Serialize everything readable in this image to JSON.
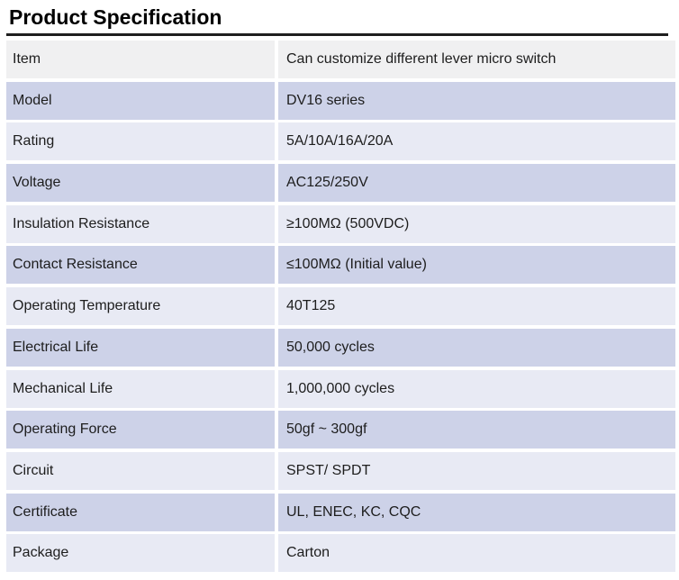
{
  "page_title": "Product Specification",
  "table": {
    "rows": [
      {
        "label": "Item",
        "value": "Can customize different lever micro switch"
      },
      {
        "label": "Model",
        "value": "DV16 series"
      },
      {
        "label": "Rating",
        "value": "5A/10A/16A/20A"
      },
      {
        "label": "Voltage",
        "value": "AC125/250V"
      },
      {
        "label": "Insulation Resistance",
        "value": "≥100MΩ (500VDC)"
      },
      {
        "label": "Contact Resistance",
        "value": "≤100MΩ (Initial value)"
      },
      {
        "label": "Operating Temperature",
        "value": "40T125"
      },
      {
        "label": "Electrical Life",
        "value": "50,000 cycles"
      },
      {
        "label": "Mechanical Life",
        "value": "1,000,000 cycles"
      },
      {
        "label": "Operating Force",
        "value": "50gf ~ 300gf"
      },
      {
        "label": "Circuit",
        "value": "SPST/ SPDT"
      },
      {
        "label": "Certificate",
        "value": "UL, ENEC, KC, CQC"
      },
      {
        "label": "Package",
        "value": "Carton"
      }
    ]
  },
  "colors": {
    "head_bg": "#f0f0f1",
    "alt_bg": "#cdd2e8",
    "light_bg": "#e8eaf4",
    "rule": "#1f1f1f",
    "text": "#1d1d1d"
  }
}
